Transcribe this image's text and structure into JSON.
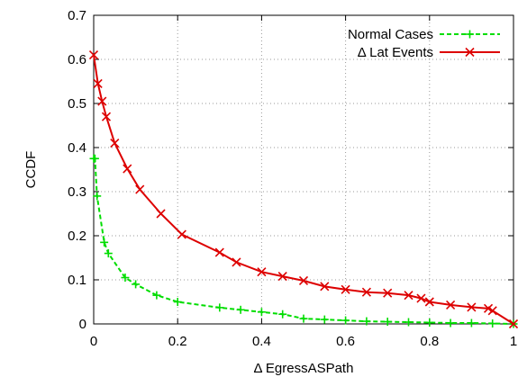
{
  "chart_data": {
    "type": "line",
    "title": "",
    "xlabel": "Δ EgressASPath",
    "ylabel": "CCDF",
    "xlim": [
      0,
      1
    ],
    "ylim": [
      0,
      0.7
    ],
    "xticks": [
      "0",
      "0.2",
      "0.4",
      "0.6",
      "0.8",
      "1"
    ],
    "yticks": [
      "0",
      "0.1",
      "0.2",
      "0.3",
      "0.4",
      "0.5",
      "0.6",
      "0.7"
    ],
    "grid": true,
    "legend_position": "top-right",
    "series": [
      {
        "name": "Normal Cases",
        "color": "#00dd00",
        "line_style": "dashed",
        "marker": "plus",
        "x": [
          0,
          0.003,
          0.008,
          0.025,
          0.035,
          0.075,
          0.1,
          0.15,
          0.2,
          0.3,
          0.35,
          0.4,
          0.45,
          0.5,
          0.55,
          0.6,
          0.65,
          0.7,
          0.75,
          0.8,
          0.85,
          0.9,
          0.95,
          1.0
        ],
        "y": [
          0.375,
          0.375,
          0.29,
          0.185,
          0.16,
          0.105,
          0.09,
          0.065,
          0.05,
          0.037,
          0.032,
          0.027,
          0.022,
          0.012,
          0.01,
          0.008,
          0.006,
          0.005,
          0.004,
          0.003,
          0.002,
          0.002,
          0.001,
          0.0
        ]
      },
      {
        "name": "Δ Lat Events",
        "color": "#dd0000",
        "line_style": "solid",
        "marker": "x",
        "x": [
          0,
          0.01,
          0.02,
          0.03,
          0.05,
          0.08,
          0.11,
          0.16,
          0.21,
          0.3,
          0.34,
          0.4,
          0.45,
          0.5,
          0.55,
          0.6,
          0.65,
          0.7,
          0.75,
          0.78,
          0.8,
          0.85,
          0.9,
          0.94,
          0.95,
          1.0
        ],
        "y": [
          0.61,
          0.545,
          0.505,
          0.47,
          0.41,
          0.352,
          0.305,
          0.25,
          0.203,
          0.162,
          0.14,
          0.118,
          0.108,
          0.098,
          0.085,
          0.078,
          0.072,
          0.07,
          0.065,
          0.058,
          0.05,
          0.043,
          0.038,
          0.035,
          0.03,
          0.0
        ]
      }
    ]
  }
}
